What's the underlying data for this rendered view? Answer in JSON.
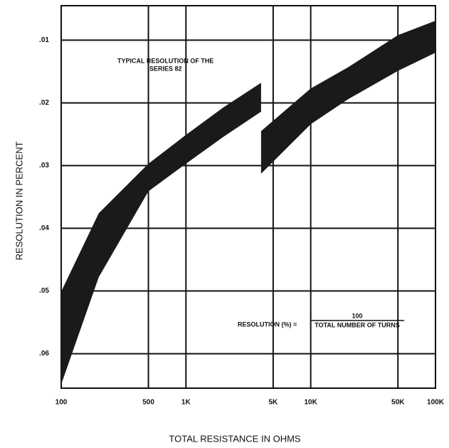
{
  "chart_data": {
    "type": "band",
    "xlabel": "TOTAL RESISTANCE IN OHMS",
    "ylabel": "RESOLUTION IN PERCENT",
    "annotations": [
      "TYPICAL RESOLUTION OF THE",
      "SERIES 82",
      "RESOLUTION (%) =",
      "100",
      "TOTAL NUMBER OF TURNS"
    ],
    "xscale": "log",
    "xlim": [
      100,
      100000
    ],
    "xticks": [
      100,
      500,
      {
        "value": 1000,
        "label": "1K"
      },
      {
        "value": 5000,
        "label": "5K"
      },
      {
        "value": 10000,
        "label": "10K"
      },
      {
        "value": 50000,
        "label": "50K"
      },
      {
        "value": 100000,
        "label": "100K"
      }
    ],
    "ylim": [
      0.0655,
      0.0045
    ],
    "yticks": [
      {
        "value": 0.01,
        "label": ".01"
      },
      {
        "value": 0.02,
        "label": ".02"
      },
      {
        "value": 0.03,
        "label": ".03"
      },
      {
        "value": 0.04,
        "label": ".04"
      },
      {
        "value": 0.05,
        "label": ".05"
      },
      {
        "value": 0.06,
        "label": ".06"
      }
    ],
    "grid": true,
    "series": [
      {
        "color": "#1a1a1a",
        "x": [
          100,
          200,
          500,
          1000,
          2000,
          4000
        ],
        "values": [
          0.0501,
          0.0376,
          0.0297,
          0.0251,
          0.0207,
          0.0168
        ],
        "lower": [
          0.0649,
          0.0478,
          0.0341,
          0.0297,
          0.0254,
          0.0214
        ]
      },
      {
        "color": "#1a1a1a",
        "x": [
          4000,
          10000,
          20000,
          50000,
          100000
        ],
        "values": [
          0.0245,
          0.0177,
          0.0143,
          0.0092,
          0.0069
        ],
        "lower": [
          0.0313,
          0.0234,
          0.0194,
          0.0149,
          0.012
        ]
      }
    ]
  }
}
